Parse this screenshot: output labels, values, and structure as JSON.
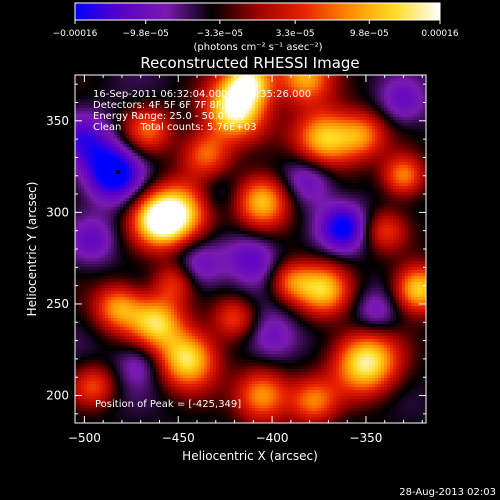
{
  "chart_data": {
    "type": "heatmap",
    "title": "Reconstructed RHESSI Image",
    "xlabel": "Heliocentric X (arcsec)",
    "ylabel": "Heliocentric Y (arcsec)",
    "xlim": [
      -505,
      -318
    ],
    "ylim": [
      185,
      375
    ],
    "x_ticks": [
      -500,
      -450,
      -400,
      -350
    ],
    "x_tick_labels": [
      "−500",
      "−450",
      "−400",
      "−350"
    ],
    "y_ticks": [
      200,
      250,
      300,
      350
    ],
    "y_tick_labels": [
      "200",
      "250",
      "300",
      "350"
    ],
    "colorbar": {
      "range": [
        -0.00016,
        0.00016
      ],
      "tick_values": [
        -0.00016,
        -9.8e-05,
        -3.3e-05,
        3.3e-05,
        9.8e-05,
        0.00016
      ],
      "tick_labels": [
        "−0.00016",
        "−9.8e−05",
        "−3.3e−05",
        "3.3e−05",
        "9.8e−05",
        "0.00016"
      ],
      "unit_label": "(photons cm⁻² s⁻¹ asec⁻²)",
      "colors": [
        "#0000ff",
        "#5a00c8",
        "#7a1ab0",
        "#000000",
        "#9e0000",
        "#e82000",
        "#ff8a00",
        "#ffdc20",
        "#ffffff"
      ]
    },
    "annotations": {
      "line1": "16-Sep-2011 06:32:04.000 to 06:35:26.000",
      "line2": "Detectors: 4F 5F 6F 7F 8F, Att 0",
      "line3": "Energy Range: 25.0 - 50.0 keV",
      "line4": "Clean      Total counts: 5.76E+03",
      "peak": "Position of Peak = [-425,349]"
    },
    "peak_position": [
      -425,
      349
    ],
    "minimum_marker": [
      -482,
      322
    ],
    "blobs": [
      {
        "x": -420,
        "y": 356,
        "v": 1.0,
        "s": 11
      },
      {
        "x": -412,
        "y": 372,
        "v": 0.85,
        "s": 9
      },
      {
        "x": -383,
        "y": 374,
        "v": 0.7,
        "s": 10
      },
      {
        "x": -435,
        "y": 332,
        "v": 0.55,
        "s": 9
      },
      {
        "x": -460,
        "y": 296,
        "v": 0.95,
        "s": 10
      },
      {
        "x": -448,
        "y": 300,
        "v": 0.7,
        "s": 12
      },
      {
        "x": -405,
        "y": 306,
        "v": 0.8,
        "s": 10
      },
      {
        "x": -372,
        "y": 340,
        "v": 0.85,
        "s": 11
      },
      {
        "x": -352,
        "y": 342,
        "v": 0.55,
        "s": 9
      },
      {
        "x": -466,
        "y": 345,
        "v": 0.5,
        "s": 9
      },
      {
        "x": -330,
        "y": 320,
        "v": 0.65,
        "s": 8
      },
      {
        "x": -350,
        "y": 218,
        "v": 0.95,
        "s": 12
      },
      {
        "x": -322,
        "y": 258,
        "v": 0.85,
        "s": 9
      },
      {
        "x": -373,
        "y": 258,
        "v": 0.75,
        "s": 10
      },
      {
        "x": -390,
        "y": 262,
        "v": 0.5,
        "s": 8
      },
      {
        "x": -462,
        "y": 240,
        "v": 0.8,
        "s": 10
      },
      {
        "x": -445,
        "y": 220,
        "v": 0.9,
        "s": 11
      },
      {
        "x": -482,
        "y": 248,
        "v": 0.65,
        "s": 9
      },
      {
        "x": -452,
        "y": 262,
        "v": 0.45,
        "s": 8
      },
      {
        "x": -405,
        "y": 200,
        "v": 0.7,
        "s": 10
      },
      {
        "x": -378,
        "y": 197,
        "v": 0.55,
        "s": 9
      },
      {
        "x": -495,
        "y": 205,
        "v": 0.45,
        "s": 8
      },
      {
        "x": -420,
        "y": 242,
        "v": 0.45,
        "s": 8
      },
      {
        "x": -340,
        "y": 290,
        "v": 0.4,
        "s": 8
      },
      {
        "x": -485,
        "y": 322,
        "v": -0.85,
        "s": 11
      },
      {
        "x": -500,
        "y": 340,
        "v": -0.45,
        "s": 10
      },
      {
        "x": -362,
        "y": 292,
        "v": -0.7,
        "s": 9
      },
      {
        "x": -380,
        "y": 318,
        "v": -0.45,
        "s": 10
      },
      {
        "x": -410,
        "y": 275,
        "v": -0.45,
        "s": 10
      },
      {
        "x": -440,
        "y": 270,
        "v": -0.4,
        "s": 10
      },
      {
        "x": -400,
        "y": 232,
        "v": -0.4,
        "s": 10
      },
      {
        "x": -470,
        "y": 218,
        "v": -0.35,
        "s": 9
      },
      {
        "x": -345,
        "y": 245,
        "v": -0.35,
        "s": 9
      },
      {
        "x": -430,
        "y": 310,
        "v": -0.3,
        "s": 9
      },
      {
        "x": -495,
        "y": 285,
        "v": -0.35,
        "s": 9
      },
      {
        "x": -330,
        "y": 360,
        "v": -0.35,
        "s": 9
      }
    ]
  },
  "footer": {
    "timestamp": "28-Aug-2013 02:03"
  }
}
